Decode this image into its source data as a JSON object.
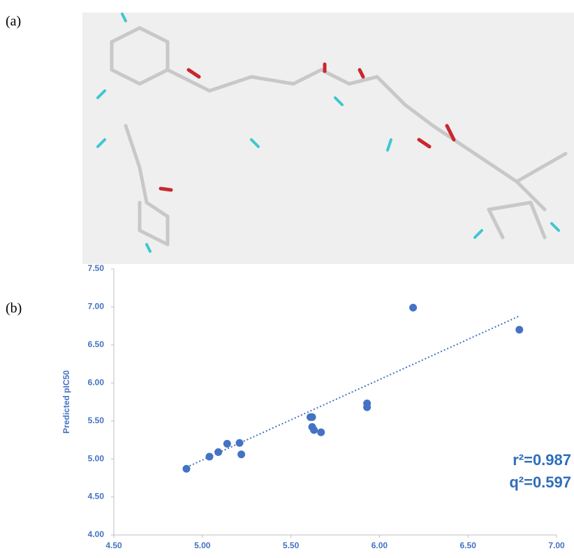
{
  "panel_labels": [
    "(a)",
    "(b)"
  ],
  "chart_data": {
    "type": "scatter",
    "y_label": "Predicted pIC50",
    "color": "#4472c4",
    "x": [
      4.91,
      5.04,
      5.14,
      5.22,
      5.21,
      5.09,
      5.61,
      5.62,
      5.62,
      5.63,
      5.67,
      5.93,
      5.93,
      6.19,
      6.79
    ],
    "values": [
      4.87,
      5.03,
      5.2,
      5.06,
      5.21,
      5.09,
      5.55,
      5.55,
      5.42,
      5.38,
      5.35,
      5.73,
      5.68,
      6.99,
      6.7
    ],
    "trendline": {
      "x": [
        4.91,
        6.79
      ],
      "y": [
        4.89,
        6.88
      ]
    },
    "xlim": [
      4.5,
      7.0
    ],
    "ylim": [
      4.0,
      7.5
    ],
    "xticks": [
      {
        "value": 4.5,
        "label": "4.50"
      },
      {
        "value": 5.0,
        "label": "5.00"
      },
      {
        "value": 5.5,
        "label": "5.50"
      },
      {
        "value": 6.0,
        "label": "6.00"
      },
      {
        "value": 6.5,
        "label": "6.50"
      },
      {
        "value": 7.0,
        "label": "7.00"
      }
    ],
    "yticks": [
      {
        "value": 4.0,
        "label": "4.00"
      },
      {
        "value": 4.5,
        "label": "4.50"
      },
      {
        "value": 5.0,
        "label": "5.00"
      },
      {
        "value": 5.5,
        "label": "5.50"
      },
      {
        "value": 6.0,
        "label": "6.00"
      },
      {
        "value": 6.5,
        "label": "6.50"
      },
      {
        "value": 7.0,
        "label": "7.00"
      },
      {
        "value": 7.5,
        "label": "7.50"
      }
    ],
    "annotations": [
      "r²=0.987",
      "q²=0.597"
    ]
  }
}
